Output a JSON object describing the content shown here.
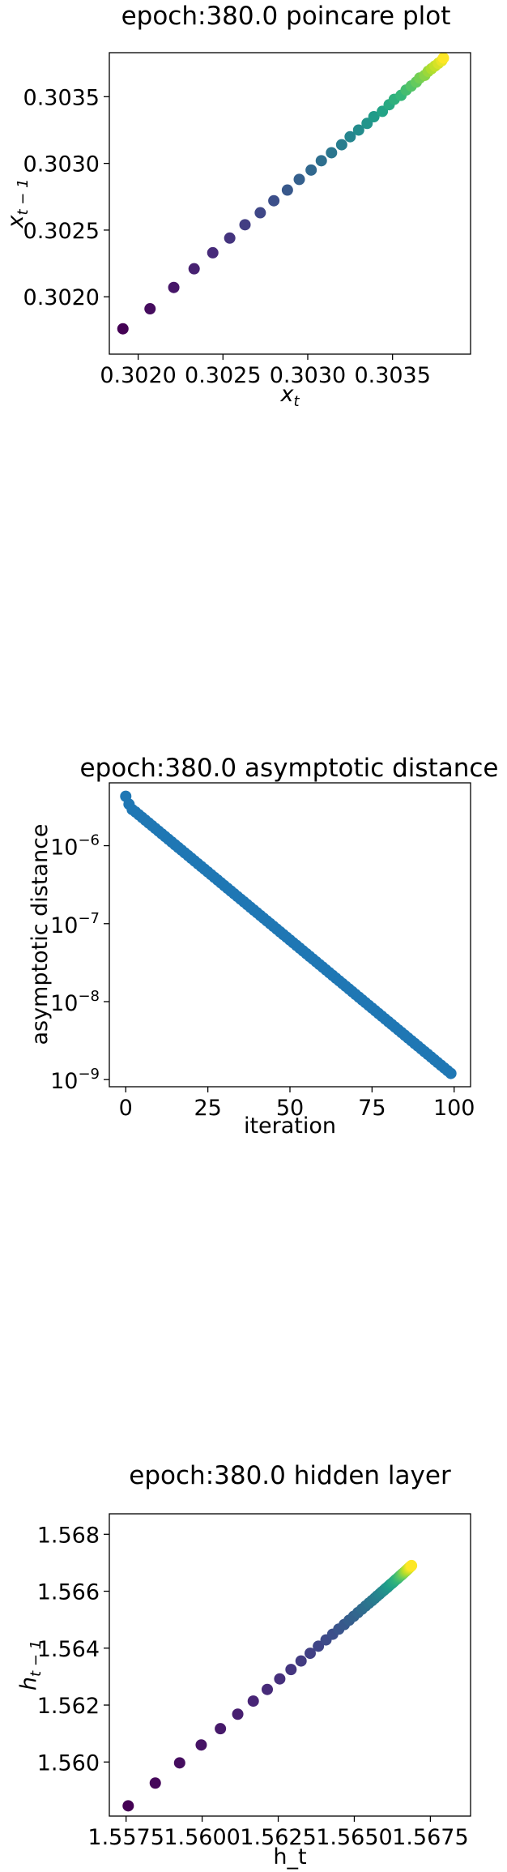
{
  "chart_data": [
    {
      "type": "scatter",
      "title": "epoch:380.0 poincare plot",
      "xlabel_base": "x",
      "xlabel_sub": "t",
      "ylabel_base": "x",
      "ylabel_sub": "t − 1",
      "xlim": [
        0.30183,
        0.30396
      ],
      "ylim": [
        0.30157,
        0.30383
      ],
      "xticks": [
        0.302,
        0.3025,
        0.303,
        0.3035
      ],
      "xtick_labels": [
        "0.3020",
        "0.3025",
        "0.3030",
        "0.3035"
      ],
      "yticks": [
        0.302,
        0.3025,
        0.303,
        0.3035
      ],
      "ytick_labels": [
        "0.3020",
        "0.3025",
        "0.3030",
        "0.3035"
      ],
      "x": [
        0.30191,
        0.30207,
        0.30221,
        0.30233,
        0.30244,
        0.30254,
        0.30263,
        0.30272,
        0.3028,
        0.30288,
        0.30295,
        0.30302,
        0.30308,
        0.30314,
        0.3032,
        0.30325,
        0.3033,
        0.30335,
        0.30339,
        0.30344,
        0.30348,
        0.30351,
        0.30355,
        0.30358,
        0.30361,
        0.30364,
        0.30366,
        0.30369,
        0.30371,
        0.30373,
        0.30375,
        0.30377,
        0.30379,
        0.3038
      ],
      "y": [
        0.30176,
        0.30191,
        0.30207,
        0.30221,
        0.30233,
        0.30244,
        0.30254,
        0.30263,
        0.30272,
        0.3028,
        0.30288,
        0.30295,
        0.30302,
        0.30308,
        0.30314,
        0.3032,
        0.30325,
        0.3033,
        0.30335,
        0.30339,
        0.30344,
        0.30348,
        0.30351,
        0.30355,
        0.30358,
        0.30361,
        0.30364,
        0.30366,
        0.30369,
        0.30371,
        0.30373,
        0.30375,
        0.30377,
        0.30379
      ],
      "colormap": "viridis",
      "color_start": "#440154",
      "color_end": "#fde725"
    },
    {
      "type": "scatter",
      "title": "epoch:380.0 asymptotic distance",
      "xlabel": "iteration",
      "ylabel": "asymptotic distance",
      "yscale": "log",
      "xlim": [
        -5,
        105
      ],
      "ylim": [
        8.1e-10,
        6.4e-06
      ],
      "xticks": [
        0,
        25,
        50,
        75,
        100
      ],
      "xtick_labels": [
        "0",
        "25",
        "50",
        "75",
        "100"
      ],
      "yticks": [
        1e-06,
        1e-07,
        1e-08,
        1e-09
      ],
      "ytick_bases": [
        "10",
        "10",
        "10",
        "10"
      ],
      "ytick_exps": [
        "−6",
        "−7",
        "−8",
        "−9"
      ],
      "x_start": 0,
      "x_end": 99,
      "y_values_first": [
        4.3e-06,
        3.4e-06,
        2.9e-06,
        2.7e-06
      ],
      "y_value_last": 1.2e-09,
      "color": "#1f77b4"
    },
    {
      "type": "scatter",
      "title": "epoch:380.0 hidden layer",
      "xlabel": "h_t",
      "ylabel_base": "h",
      "ylabel_sub": "t − 1",
      "xlim": [
        1.55695,
        1.56882
      ],
      "ylim": [
        1.5581,
        1.56872
      ],
      "xticks": [
        1.5575,
        1.56,
        1.5625,
        1.565,
        1.5675
      ],
      "xtick_labels": [
        "1.5575",
        "1.5600",
        "1.5625",
        "1.5650",
        "1.5675"
      ],
      "yticks": [
        1.56,
        1.562,
        1.564,
        1.566,
        1.568
      ],
      "ytick_labels": [
        "1.560",
        "1.562",
        "1.564",
        "1.566",
        "1.568"
      ],
      "x": [
        1.55757,
        1.55846,
        1.55926,
        1.55997,
        1.5606,
        1.56117,
        1.56168,
        1.56214,
        1.56255,
        1.56292,
        1.56325,
        1.56355,
        1.56382,
        1.56407,
        1.56429,
        1.56449,
        1.56467,
        1.56483,
        1.56498,
        1.56512,
        1.56525,
        1.56537,
        1.56548,
        1.56558,
        1.56567,
        1.56575,
        1.56583,
        1.5659,
        1.56597,
        1.56603,
        1.56609,
        1.56614,
        1.56619,
        1.56624,
        1.56628,
        1.56632,
        1.56636,
        1.5664,
        1.56643,
        1.56646,
        1.56649,
        1.56652,
        1.56655,
        1.56657,
        1.5666,
        1.56662,
        1.56664,
        1.56666,
        1.56668,
        1.5667,
        1.56672,
        1.56674,
        1.56676,
        1.56678,
        1.5668,
        1.56682,
        1.56684,
        1.56686,
        1.56688
      ],
      "y": [
        1.55846,
        1.55926,
        1.55997,
        1.5606,
        1.56117,
        1.56168,
        1.56214,
        1.56255,
        1.56292,
        1.56325,
        1.56355,
        1.56382,
        1.56407,
        1.56429,
        1.56449,
        1.56467,
        1.56483,
        1.56498,
        1.56512,
        1.56525,
        1.56537,
        1.56548,
        1.56558,
        1.56567,
        1.56575,
        1.56583,
        1.5659,
        1.56597,
        1.56603,
        1.56609,
        1.56614,
        1.56619,
        1.56624,
        1.56628,
        1.56632,
        1.56636,
        1.5664,
        1.56643,
        1.56646,
        1.56649,
        1.56652,
        1.56655,
        1.56657,
        1.5666,
        1.56662,
        1.56664,
        1.56666,
        1.56668,
        1.5667,
        1.56672,
        1.56674,
        1.56676,
        1.56678,
        1.5668,
        1.56682,
        1.56684,
        1.56686,
        1.56688,
        1.5669
      ],
      "colormap": "viridis",
      "color_start": "#440154",
      "color_end": "#fde725"
    }
  ]
}
